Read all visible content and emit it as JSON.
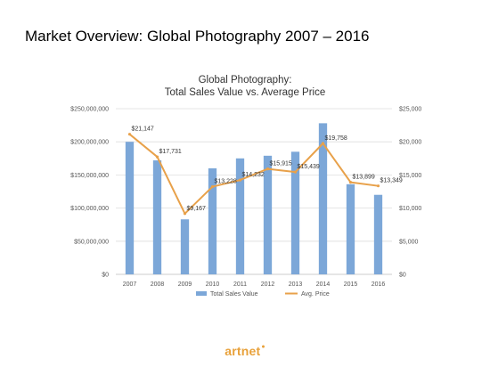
{
  "slide": {
    "title": "Market Overview: Global Photography 2007 – 2016",
    "logo": "artnet"
  },
  "colors": {
    "bar": "#7ca7d8",
    "line": "#e8a14a",
    "grid": "#dddddd",
    "text": "#555555",
    "logo": "#e8a13a"
  },
  "chart_data": {
    "type": "bar",
    "title": "Global Photography:",
    "subtitle": "Total Sales Value vs. Average Price",
    "categories": [
      "2007",
      "2008",
      "2009",
      "2010",
      "2011",
      "2012",
      "2013",
      "2014",
      "2015",
      "2016"
    ],
    "series": [
      {
        "name": "Total Sales Value",
        "type": "bar",
        "axis": "left",
        "values": [
          200000000,
          172000000,
          83000000,
          160000000,
          175000000,
          179000000,
          185000000,
          228000000,
          136000000,
          120000000
        ]
      },
      {
        "name": "Avg. Price",
        "type": "line",
        "axis": "right",
        "values": [
          21147,
          17731,
          9167,
          13228,
          14232,
          15915,
          15439,
          19758,
          13899,
          13349
        ],
        "labels": [
          "$21,147",
          "$17,731",
          "$9,167",
          "$13,228",
          "$14,232",
          "$15,915",
          "$15,439",
          "$19,758",
          "$13,899",
          "$13,349"
        ]
      }
    ],
    "y_left": {
      "ylim": [
        0,
        250000000
      ],
      "ticks": [
        0,
        50000000,
        100000000,
        150000000,
        200000000,
        250000000
      ],
      "tick_labels": [
        "$0",
        "$50,000,000",
        "$100,000,000",
        "$150,000,000",
        "$200,000,000",
        "$250,000,000"
      ]
    },
    "y_right": {
      "ylim": [
        0,
        25000
      ],
      "ticks": [
        0,
        5000,
        10000,
        15000,
        20000,
        25000
      ],
      "tick_labels": [
        "$0",
        "$5,000",
        "$10,000",
        "$15,000",
        "$20,000",
        "$25,000"
      ]
    },
    "grid": true,
    "legend": "bottom"
  }
}
